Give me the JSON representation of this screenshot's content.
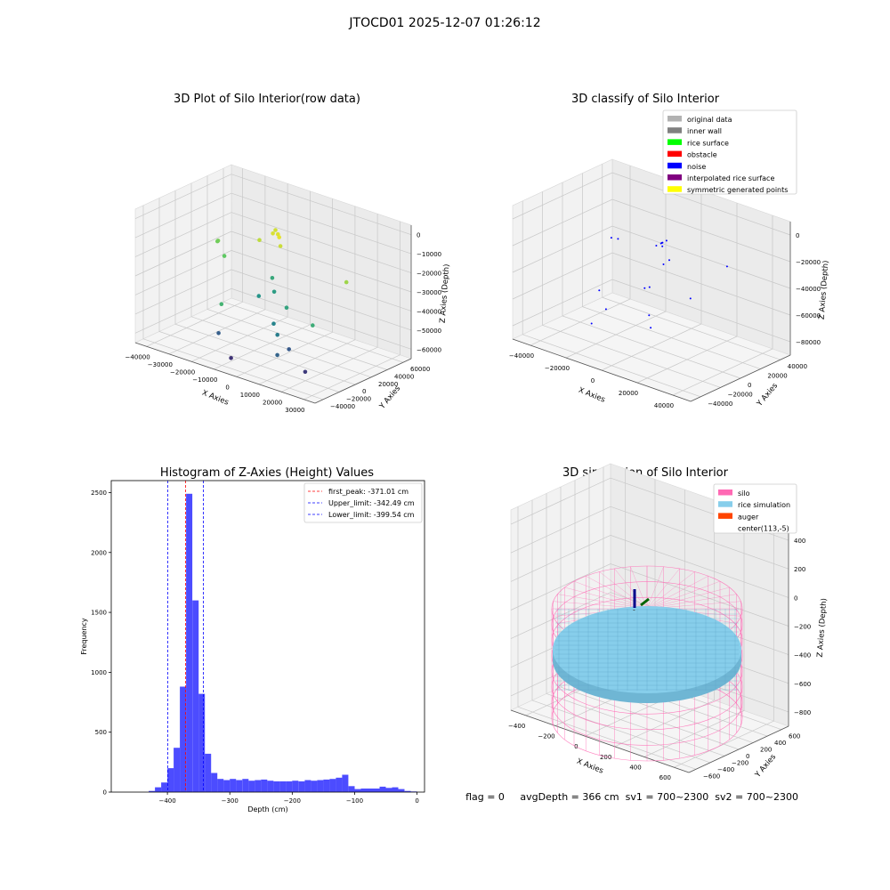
{
  "suptitle": "JTOCD01 2025-12-07 01:26:12",
  "chart_data": [
    {
      "type": "scatter",
      "title": "3D Plot of Silo Interior(row data)",
      "xlabel": "X Axies",
      "ylabel": "Y Axies",
      "zlabel": "Z Axies (Depth)",
      "xticks": [
        "−40000",
        "−30000",
        "−20000",
        "−10000",
        "0",
        "10000",
        "20000",
        "30000"
      ],
      "yticks": [
        "−40000",
        "−20000",
        "0",
        "20000",
        "40000",
        "60000"
      ],
      "zticks": [
        "0",
        "−10000",
        "−20000",
        "−30000",
        "−40000",
        "−50000",
        "−60000"
      ],
      "colormap": "viridis",
      "points": [
        {
          "x": -12000,
          "y": 30000,
          "z": -12000,
          "c": 0.93
        },
        {
          "x": -10000,
          "y": 28000,
          "z": -13000,
          "c": 0.95
        },
        {
          "x": -9000,
          "y": 27000,
          "z": -14000,
          "c": 0.96
        },
        {
          "x": -14000,
          "y": 32000,
          "z": -15000,
          "c": 0.94
        },
        {
          "x": -16000,
          "y": 22000,
          "z": -17000,
          "c": 0.9
        },
        {
          "x": -8000,
          "y": 26000,
          "z": -18000,
          "c": 0.92
        },
        {
          "x": -30000,
          "y": 10000,
          "z": -20000,
          "c": 0.8
        },
        {
          "x": -32000,
          "y": 14000,
          "z": -22000,
          "c": 0.78
        },
        {
          "x": 25000,
          "y": 20000,
          "z": -23000,
          "c": 0.85
        },
        {
          "x": -25000,
          "y": 5000,
          "z": -25000,
          "c": 0.75
        },
        {
          "x": -5000,
          "y": 10000,
          "z": -30000,
          "c": 0.6
        },
        {
          "x": -2000,
          "y": 5000,
          "z": -35000,
          "c": 0.55
        },
        {
          "x": -7000,
          "y": 0,
          "z": -38000,
          "c": 0.52
        },
        {
          "x": 5000,
          "y": 2000,
          "z": -40000,
          "c": 0.58
        },
        {
          "x": 20000,
          "y": -5000,
          "z": -42000,
          "c": 0.62
        },
        {
          "x": -20000,
          "y": -10000,
          "z": -45000,
          "c": 0.65
        },
        {
          "x": 2000,
          "y": -5000,
          "z": -48000,
          "c": 0.45
        },
        {
          "x": 5000,
          "y": -8000,
          "z": -52000,
          "c": 0.42
        },
        {
          "x": -15000,
          "y": -25000,
          "z": -55000,
          "c": 0.3
        },
        {
          "x": 10000,
          "y": -20000,
          "z": -58000,
          "c": 0.32
        },
        {
          "x": 12000,
          "y": -12000,
          "z": -56000,
          "c": 0.28
        },
        {
          "x": -5000,
          "y": -35000,
          "z": -62000,
          "c": 0.15
        },
        {
          "x": 25000,
          "y": -25000,
          "z": -60000,
          "c": 0.18
        }
      ]
    },
    {
      "type": "scatter",
      "title": "3D classify of Silo Interior",
      "xlabel": "X Axies",
      "ylabel": "Y Axies",
      "zlabel": "Z Axies (Depth)",
      "xticks": [
        "−40000",
        "−20000",
        "0",
        "20000",
        "40000"
      ],
      "yticks": [
        "−40000",
        "−20000",
        "0",
        "20000",
        "40000"
      ],
      "zticks": [
        "0",
        "−20000",
        "−40000",
        "−60000",
        "−80000"
      ],
      "legend": [
        {
          "label": "original data",
          "color": "#b2b2b2"
        },
        {
          "label": "inner wall",
          "color": "#808080"
        },
        {
          "label": "rice surface",
          "color": "#00ff00"
        },
        {
          "label": "obstacle",
          "color": "#ff0000"
        },
        {
          "label": "noise",
          "color": "#0000ff"
        },
        {
          "label": "interpolated rice surface",
          "color": "#800080"
        },
        {
          "label": "symmetric generated points",
          "color": "#ffff00"
        }
      ],
      "legend_loc": "upper right",
      "points": [
        {
          "x": 0,
          "y": 10000,
          "z": -18000
        },
        {
          "x": 1000,
          "y": 12000,
          "z": -17000
        },
        {
          "x": -1000,
          "y": 11000,
          "z": -19000
        },
        {
          "x": 500,
          "y": 9000,
          "z": -20000
        },
        {
          "x": -4000,
          "y": 15000,
          "z": -22000
        },
        {
          "x": -6000,
          "y": 14000,
          "z": -24000
        },
        {
          "x": 5000,
          "y": 8000,
          "z": -27000
        },
        {
          "x": 3000,
          "y": 6000,
          "z": -30000
        },
        {
          "x": -25000,
          "y": 10000,
          "z": -26000
        },
        {
          "x": -30000,
          "y": 12000,
          "z": -28000
        },
        {
          "x": 30000,
          "y": 20000,
          "z": -25000
        },
        {
          "x": 25000,
          "y": -5000,
          "z": -40000
        },
        {
          "x": 2000,
          "y": -5000,
          "z": -42000
        },
        {
          "x": -2000,
          "y": -3000,
          "z": -45000
        },
        {
          "x": -20000,
          "y": -15000,
          "z": -50000
        },
        {
          "x": -10000,
          "y": -25000,
          "z": -55000
        },
        {
          "x": 8000,
          "y": -15000,
          "z": -55000
        },
        {
          "x": 12000,
          "y": -20000,
          "z": -60000
        },
        {
          "x": -15000,
          "y": -30000,
          "z": -65000
        }
      ]
    },
    {
      "type": "bar",
      "title": "Histogram of Z-Axies (Height) Values",
      "xlabel": "Depth (cm)",
      "ylabel": "Frequency",
      "xticks": [
        -400,
        -300,
        -200,
        -100,
        0
      ],
      "yticks": [
        0,
        500,
        1000,
        1500,
        2000,
        2500
      ],
      "xlim": [
        -490,
        12
      ],
      "ylim": [
        0,
        2600
      ],
      "bin_width": 10,
      "bins": [
        {
          "x": -430,
          "value": 10
        },
        {
          "x": -420,
          "value": 40
        },
        {
          "x": -410,
          "value": 80
        },
        {
          "x": -400,
          "value": 200
        },
        {
          "x": -390,
          "value": 370
        },
        {
          "x": -380,
          "value": 880
        },
        {
          "x": -370,
          "value": 2490
        },
        {
          "x": -360,
          "value": 1600
        },
        {
          "x": -350,
          "value": 820
        },
        {
          "x": -340,
          "value": 320
        },
        {
          "x": -330,
          "value": 160
        },
        {
          "x": -320,
          "value": 110
        },
        {
          "x": -310,
          "value": 100
        },
        {
          "x": -300,
          "value": 110
        },
        {
          "x": -290,
          "value": 100
        },
        {
          "x": -280,
          "value": 110
        },
        {
          "x": -270,
          "value": 95
        },
        {
          "x": -260,
          "value": 100
        },
        {
          "x": -250,
          "value": 105
        },
        {
          "x": -240,
          "value": 95
        },
        {
          "x": -230,
          "value": 90
        },
        {
          "x": -220,
          "value": 90
        },
        {
          "x": -210,
          "value": 90
        },
        {
          "x": -200,
          "value": 95
        },
        {
          "x": -190,
          "value": 90
        },
        {
          "x": -180,
          "value": 100
        },
        {
          "x": -170,
          "value": 95
        },
        {
          "x": -160,
          "value": 100
        },
        {
          "x": -150,
          "value": 105
        },
        {
          "x": -140,
          "value": 110
        },
        {
          "x": -130,
          "value": 120
        },
        {
          "x": -120,
          "value": 145
        },
        {
          "x": -110,
          "value": 50
        },
        {
          "x": -100,
          "value": 25
        },
        {
          "x": -90,
          "value": 30
        },
        {
          "x": -80,
          "value": 30
        },
        {
          "x": -70,
          "value": 30
        },
        {
          "x": -60,
          "value": 45
        },
        {
          "x": -50,
          "value": 35
        },
        {
          "x": -40,
          "value": 40
        },
        {
          "x": -30,
          "value": 25
        },
        {
          "x": -20,
          "value": 10
        },
        {
          "x": -10,
          "value": 5
        }
      ],
      "vlines": [
        {
          "label": "first_peak: -371.01 cm",
          "value": -371.01,
          "color": "#ff0000"
        },
        {
          "label": "Upper_limit: -342.49 cm",
          "value": -342.49,
          "color": "#0000ff"
        },
        {
          "label": "Lower_limit: -399.54 cm",
          "value": -399.54,
          "color": "#0000ff"
        }
      ],
      "legend_loc": "upper right"
    },
    {
      "type": "scatter",
      "title": "3D simulation of Silo Interior",
      "xlabel": "X Axies",
      "ylabel": "Y Axies",
      "zlabel": "Z Axies (Depth)",
      "xticks": [
        "−400",
        "−200",
        "0",
        "200",
        "400",
        "600"
      ],
      "yticks": [
        "−600",
        "−400",
        "−200",
        "0",
        "200",
        "400",
        "600"
      ],
      "zticks": [
        "400",
        "200",
        "0",
        "−200",
        "−400",
        "−600",
        "−800"
      ],
      "legend": [
        {
          "label": "silo",
          "color": "#ff69b4"
        },
        {
          "label": "rice simulation",
          "color": "#87ceeb"
        },
        {
          "label": "auger",
          "color": "#ff4500"
        },
        {
          "label": "center(113,-5)",
          "color": ""
        }
      ],
      "legend_loc": "upper right",
      "center": {
        "x": 113,
        "y": -5
      },
      "rice_surface_depth": -366
    }
  ],
  "status": {
    "flag": "flag = 0",
    "avg_depth": "avgDepth = 366 cm",
    "sv1": "sv1 = 700~2300",
    "sv2": "sv2 = 700~2300"
  }
}
